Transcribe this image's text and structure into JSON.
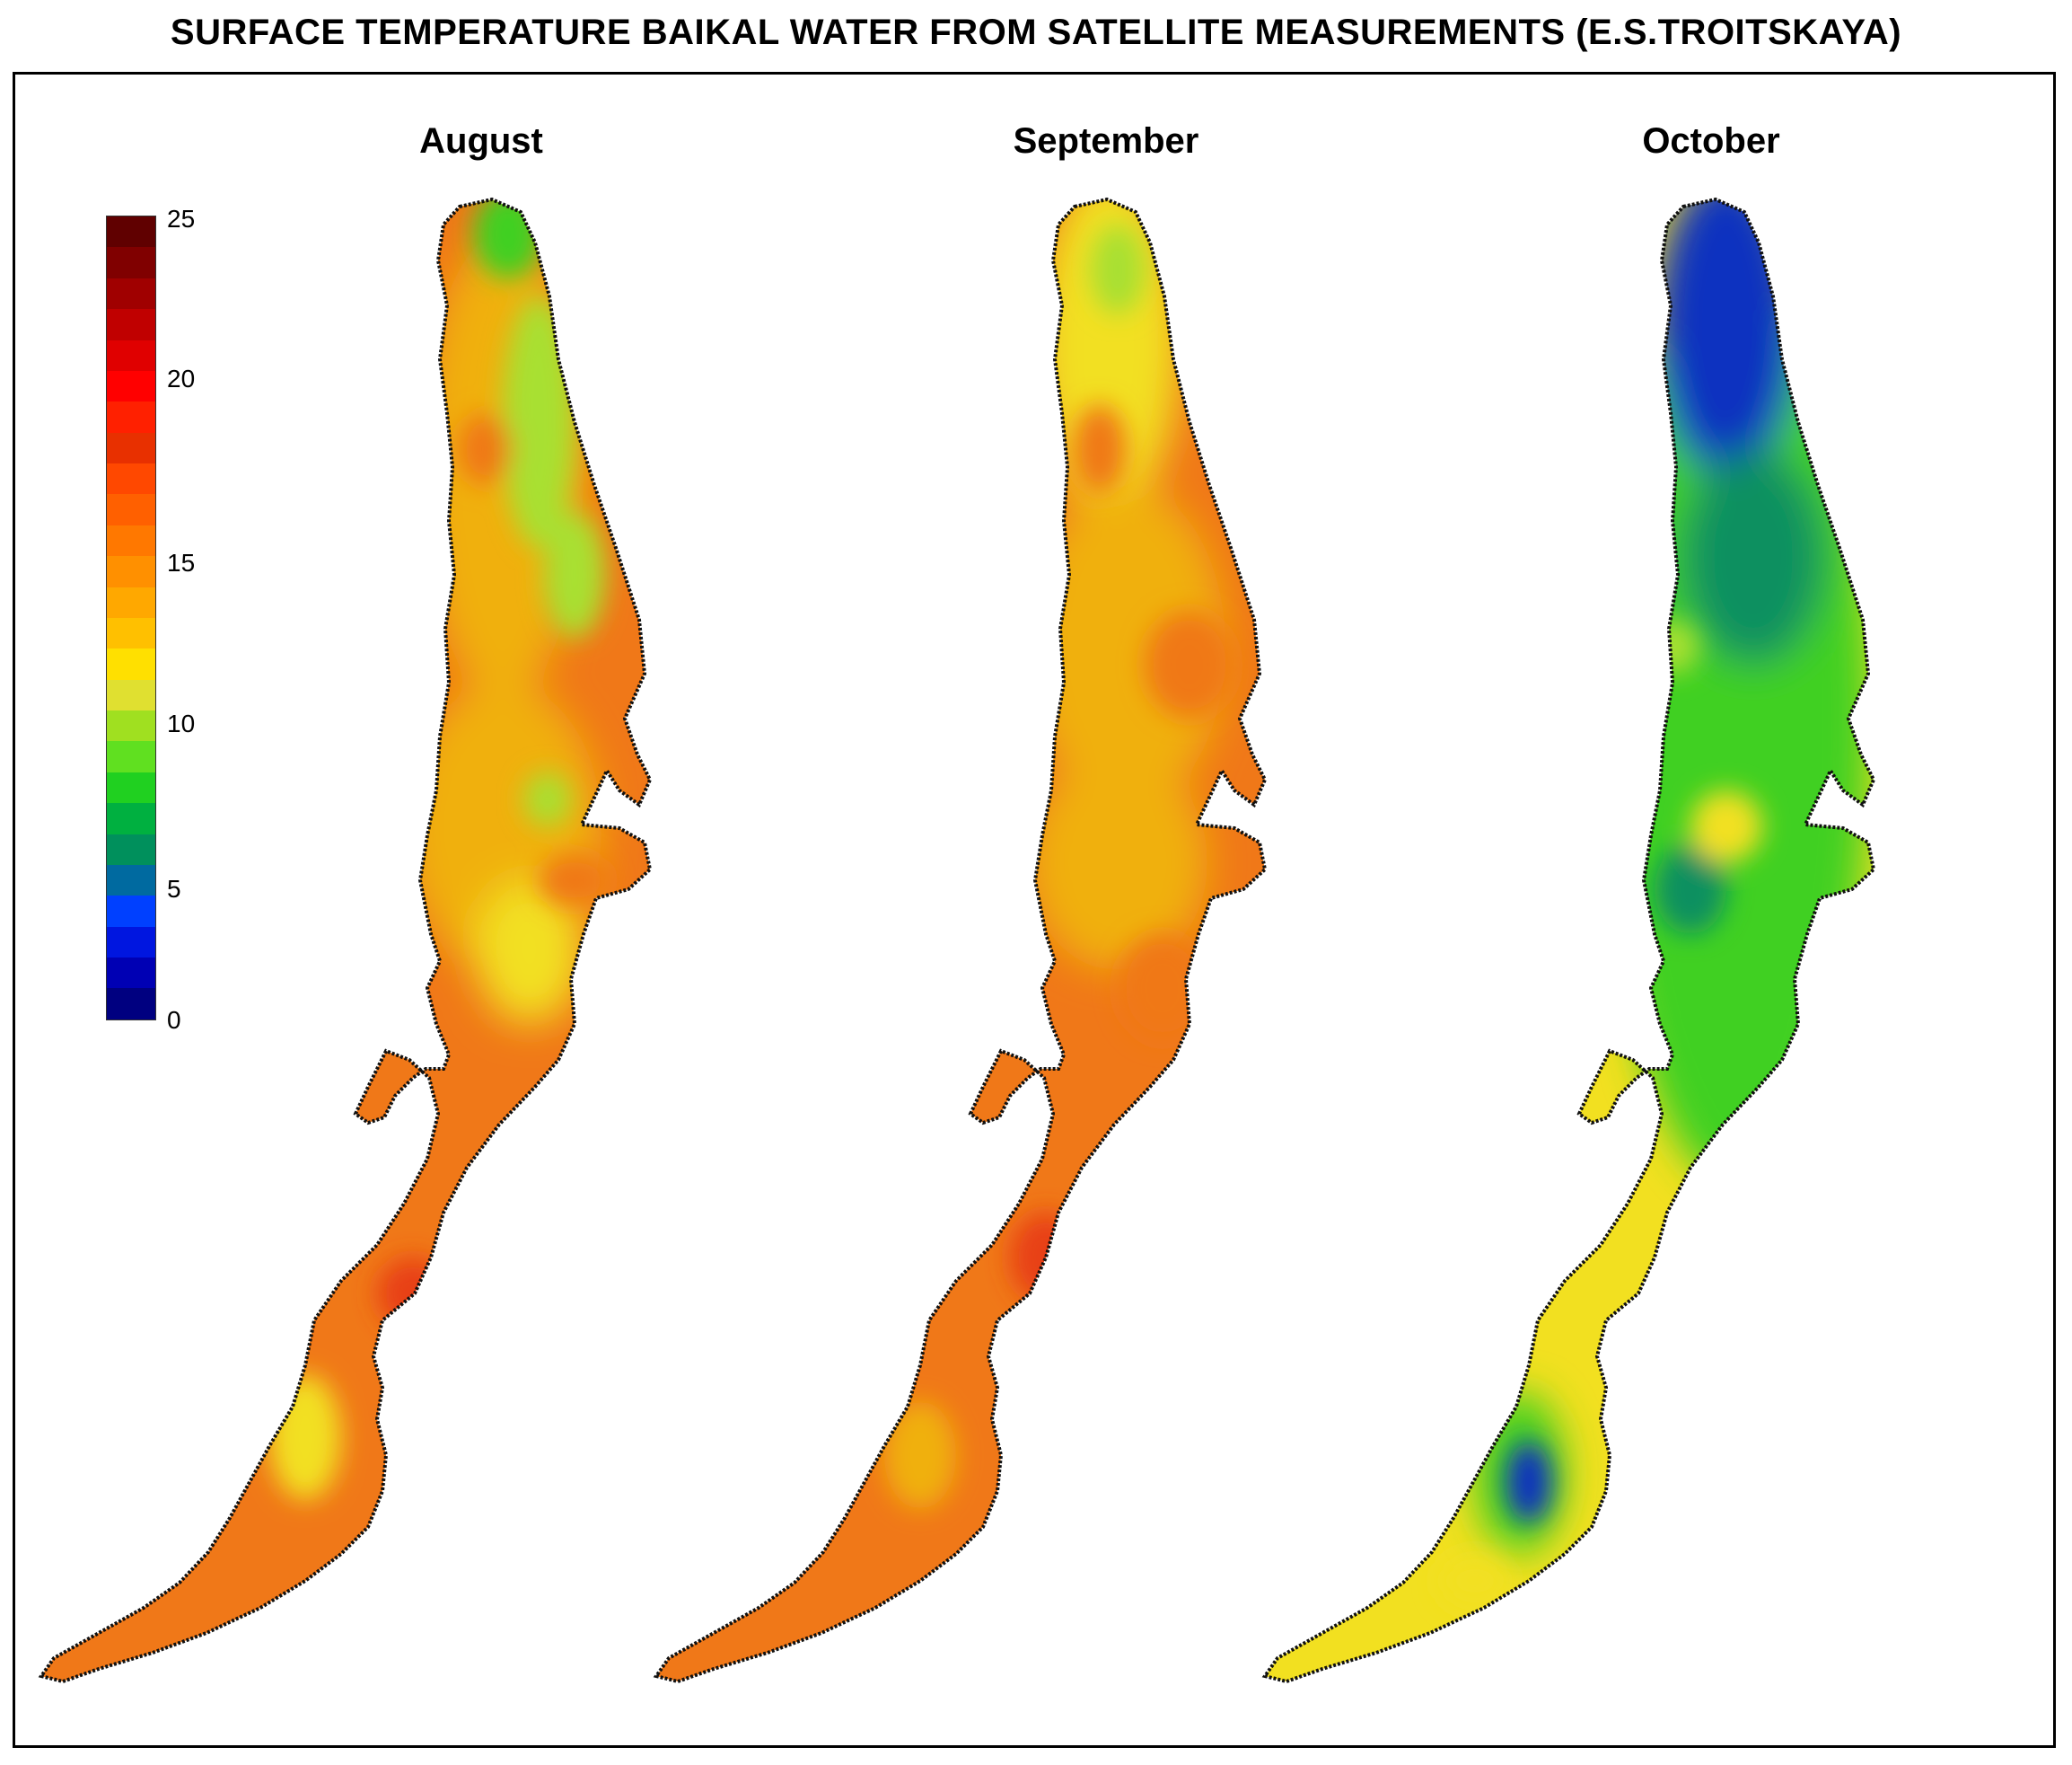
{
  "title": "SURFACE TEMPERATURE BAIKAL WATER FROM SATELLITE MEASUREMENTS (E.S.TROITSKAYA)",
  "panels": [
    {
      "label": "August",
      "dominant": "orange",
      "north": "green"
    },
    {
      "label": "September",
      "dominant": "orange",
      "north": "yellow"
    },
    {
      "label": "October",
      "dominant": "green",
      "north": "blue"
    }
  ],
  "legend": {
    "min": 0,
    "max": 25,
    "ticks": [
      "25",
      "20",
      "15",
      "10",
      "5",
      "0"
    ],
    "tick_values": [
      25,
      20,
      15,
      10,
      5,
      0
    ],
    "colors": [
      "#000080",
      "#0000b4",
      "#0016e0",
      "#0040ff",
      "#006aa0",
      "#00905c",
      "#00b040",
      "#20d020",
      "#60e020",
      "#a0e020",
      "#e0e030",
      "#ffe000",
      "#ffc000",
      "#ffa800",
      "#ff9000",
      "#ff7800",
      "#ff6000",
      "#ff4800",
      "#e83000",
      "#ff2000",
      "#ff0000",
      "#e00000",
      "#c00000",
      "#a00000",
      "#800000",
      "#600000"
    ]
  },
  "colors": {
    "blue": "#1030c0",
    "teal": "#109060",
    "green": "#40d020",
    "lime": "#a8e030",
    "yellow": "#f2e020",
    "gold": "#f0b010",
    "orange": "#f07818",
    "red": "#e84018"
  }
}
